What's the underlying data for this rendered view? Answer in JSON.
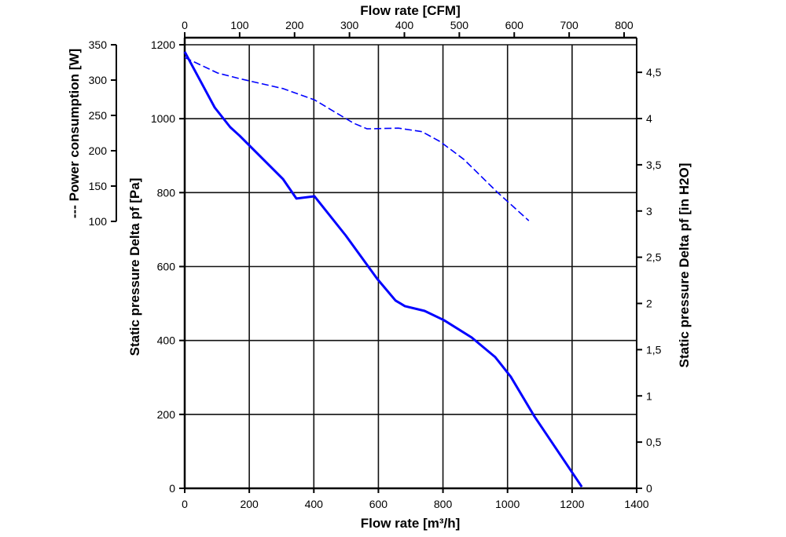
{
  "chart_data": {
    "type": "line",
    "title": "",
    "xlabel": "Flow rate [m³/h]",
    "x2label": "Flow rate [CFM]",
    "ylabel": "Static pressure Delta pf [Pa]",
    "y2label": "Static pressure Delta pf [in H2O]",
    "y3label": "--- Power consumption [W]",
    "xlim": [
      0,
      1400
    ],
    "ylim": [
      0,
      1200
    ],
    "x_ticks": [
      "0",
      "200",
      "400",
      "600",
      "800",
      "1000",
      "1200",
      "1400"
    ],
    "x2_ticks": [
      "0",
      "100",
      "200",
      "300",
      "400",
      "500",
      "600",
      "700",
      "800"
    ],
    "y_ticks": [
      "0",
      "200",
      "400",
      "600",
      "800",
      "1000",
      "1200"
    ],
    "y2_ticks": [
      "0",
      "0,5",
      "1",
      "1,5",
      "2",
      "2,5",
      "3",
      "3,5",
      "4",
      "4,5"
    ],
    "y3_ticks": [
      "100",
      "150",
      "200",
      "250",
      "300",
      "350"
    ],
    "y3lim": [
      100,
      350
    ],
    "grid": true,
    "series": [
      {
        "name": "Static pressure [Pa]",
        "axis": "left",
        "style": "solid",
        "color": "#0000ff",
        "x": [
          0,
          93,
          141,
          170,
          304,
          346,
          402,
          499,
          596,
          653,
          682,
          743,
          803,
          889,
          962,
          1010,
          1083,
          1230
        ],
        "y": [
          1181,
          1030,
          977,
          954,
          837,
          784,
          790,
          684,
          567,
          508,
          493,
          480,
          455,
          408,
          355,
          302,
          195,
          4
        ]
      },
      {
        "name": "Power consumption [W]",
        "axis": "power",
        "style": "dashed",
        "color": "#0000ff",
        "x": [
          0,
          102,
          170,
          304,
          402,
          523,
          565,
          662,
          735,
          791,
          864,
          969,
          1066
        ],
        "y": [
          332,
          310,
          302,
          288,
          272,
          239,
          231,
          232,
          227,
          213,
          188,
          141,
          101
        ]
      }
    ]
  }
}
